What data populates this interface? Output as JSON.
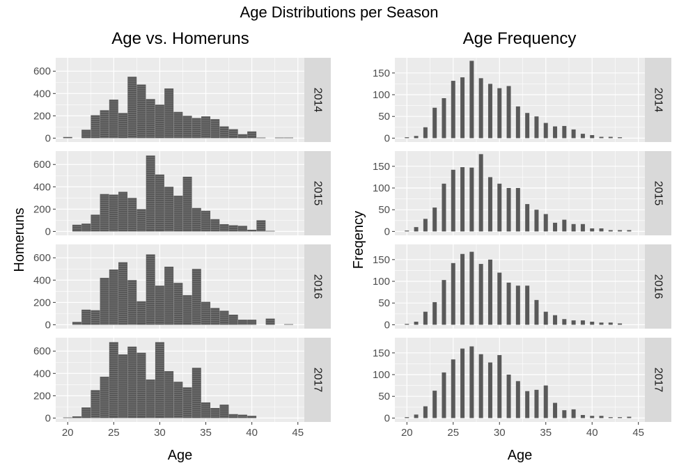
{
  "figure_title": "Age Distributions per Season",
  "colors": {
    "panel_bg": "#ebebeb",
    "grid_major": "#ffffff",
    "bar_fill": "#595959",
    "bar_stripe": "#d9d9d9",
    "strip_bg": "#d9d9d9",
    "tick_text": "#4d4d4d",
    "label_text": "#000000"
  },
  "chart_data": [
    {
      "type": "bar",
      "title": "Age vs. Homeruns",
      "xlabel": "Age",
      "ylabel": "Homeruns",
      "xlim": [
        18.7,
        45.7
      ],
      "ylim": [
        -35,
        720
      ],
      "xticks": [
        20,
        25,
        30,
        35,
        40,
        45
      ],
      "yticks": [
        0,
        200,
        400,
        600
      ],
      "grid": true,
      "facets": [
        "2014",
        "2015",
        "2016",
        "2017"
      ],
      "x": [
        20,
        21,
        22,
        23,
        24,
        25,
        26,
        27,
        28,
        29,
        30,
        31,
        32,
        33,
        34,
        35,
        36,
        37,
        38,
        39,
        40,
        41,
        42,
        43,
        44
      ],
      "series": [
        {
          "name": "2014",
          "values": [
            10,
            0,
            75,
            205,
            250,
            345,
            225,
            550,
            480,
            350,
            300,
            445,
            235,
            200,
            180,
            195,
            170,
            105,
            80,
            35,
            60,
            5,
            0,
            5,
            5
          ]
        },
        {
          "name": "2015",
          "values": [
            0,
            60,
            70,
            150,
            335,
            330,
            355,
            300,
            200,
            680,
            510,
            400,
            320,
            490,
            210,
            185,
            110,
            65,
            55,
            50,
            15,
            100,
            5,
            0,
            0
          ]
        },
        {
          "name": "2016",
          "values": [
            0,
            25,
            135,
            130,
            420,
            495,
            560,
            400,
            210,
            630,
            350,
            520,
            375,
            265,
            500,
            205,
            150,
            125,
            90,
            45,
            45,
            0,
            55,
            0,
            5
          ]
        },
        {
          "name": "2017",
          "values": [
            5,
            15,
            95,
            250,
            370,
            680,
            570,
            640,
            585,
            345,
            680,
            420,
            325,
            275,
            450,
            140,
            90,
            120,
            35,
            30,
            20,
            0,
            0,
            0,
            0
          ]
        }
      ]
    },
    {
      "type": "bar",
      "title": "Age Frequency",
      "xlabel": "Age",
      "ylabel": "Freqency",
      "xlim": [
        18.7,
        45.7
      ],
      "ylim": [
        -9,
        185
      ],
      "xticks": [
        20,
        25,
        30,
        35,
        40,
        45
      ],
      "yticks": [
        0,
        50,
        100,
        150
      ],
      "grid": true,
      "facets": [
        "2014",
        "2015",
        "2016",
        "2017"
      ],
      "x": [
        20,
        21,
        22,
        23,
        24,
        25,
        26,
        27,
        28,
        29,
        30,
        31,
        32,
        33,
        34,
        35,
        36,
        37,
        38,
        39,
        40,
        41,
        42,
        43,
        44
      ],
      "series": [
        {
          "name": "2014",
          "values": [
            2,
            5,
            25,
            70,
            92,
            132,
            140,
            178,
            138,
            125,
            115,
            120,
            73,
            58,
            50,
            35,
            27,
            28,
            20,
            10,
            7,
            3,
            3,
            2,
            0
          ]
        },
        {
          "name": "2015",
          "values": [
            2,
            10,
            29,
            55,
            110,
            142,
            148,
            147,
            178,
            125,
            110,
            100,
            100,
            63,
            50,
            40,
            20,
            27,
            17,
            17,
            7,
            7,
            3,
            3,
            3
          ]
        },
        {
          "name": "2016",
          "values": [
            2,
            7,
            30,
            52,
            103,
            142,
            163,
            168,
            140,
            150,
            120,
            97,
            90,
            90,
            57,
            30,
            22,
            13,
            10,
            10,
            7,
            5,
            5,
            3,
            0
          ]
        },
        {
          "name": "2017",
          "values": [
            2,
            8,
            27,
            63,
            105,
            135,
            160,
            165,
            147,
            128,
            145,
            100,
            85,
            62,
            65,
            75,
            35,
            18,
            20,
            7,
            5,
            5,
            2,
            2,
            3
          ]
        }
      ]
    }
  ]
}
